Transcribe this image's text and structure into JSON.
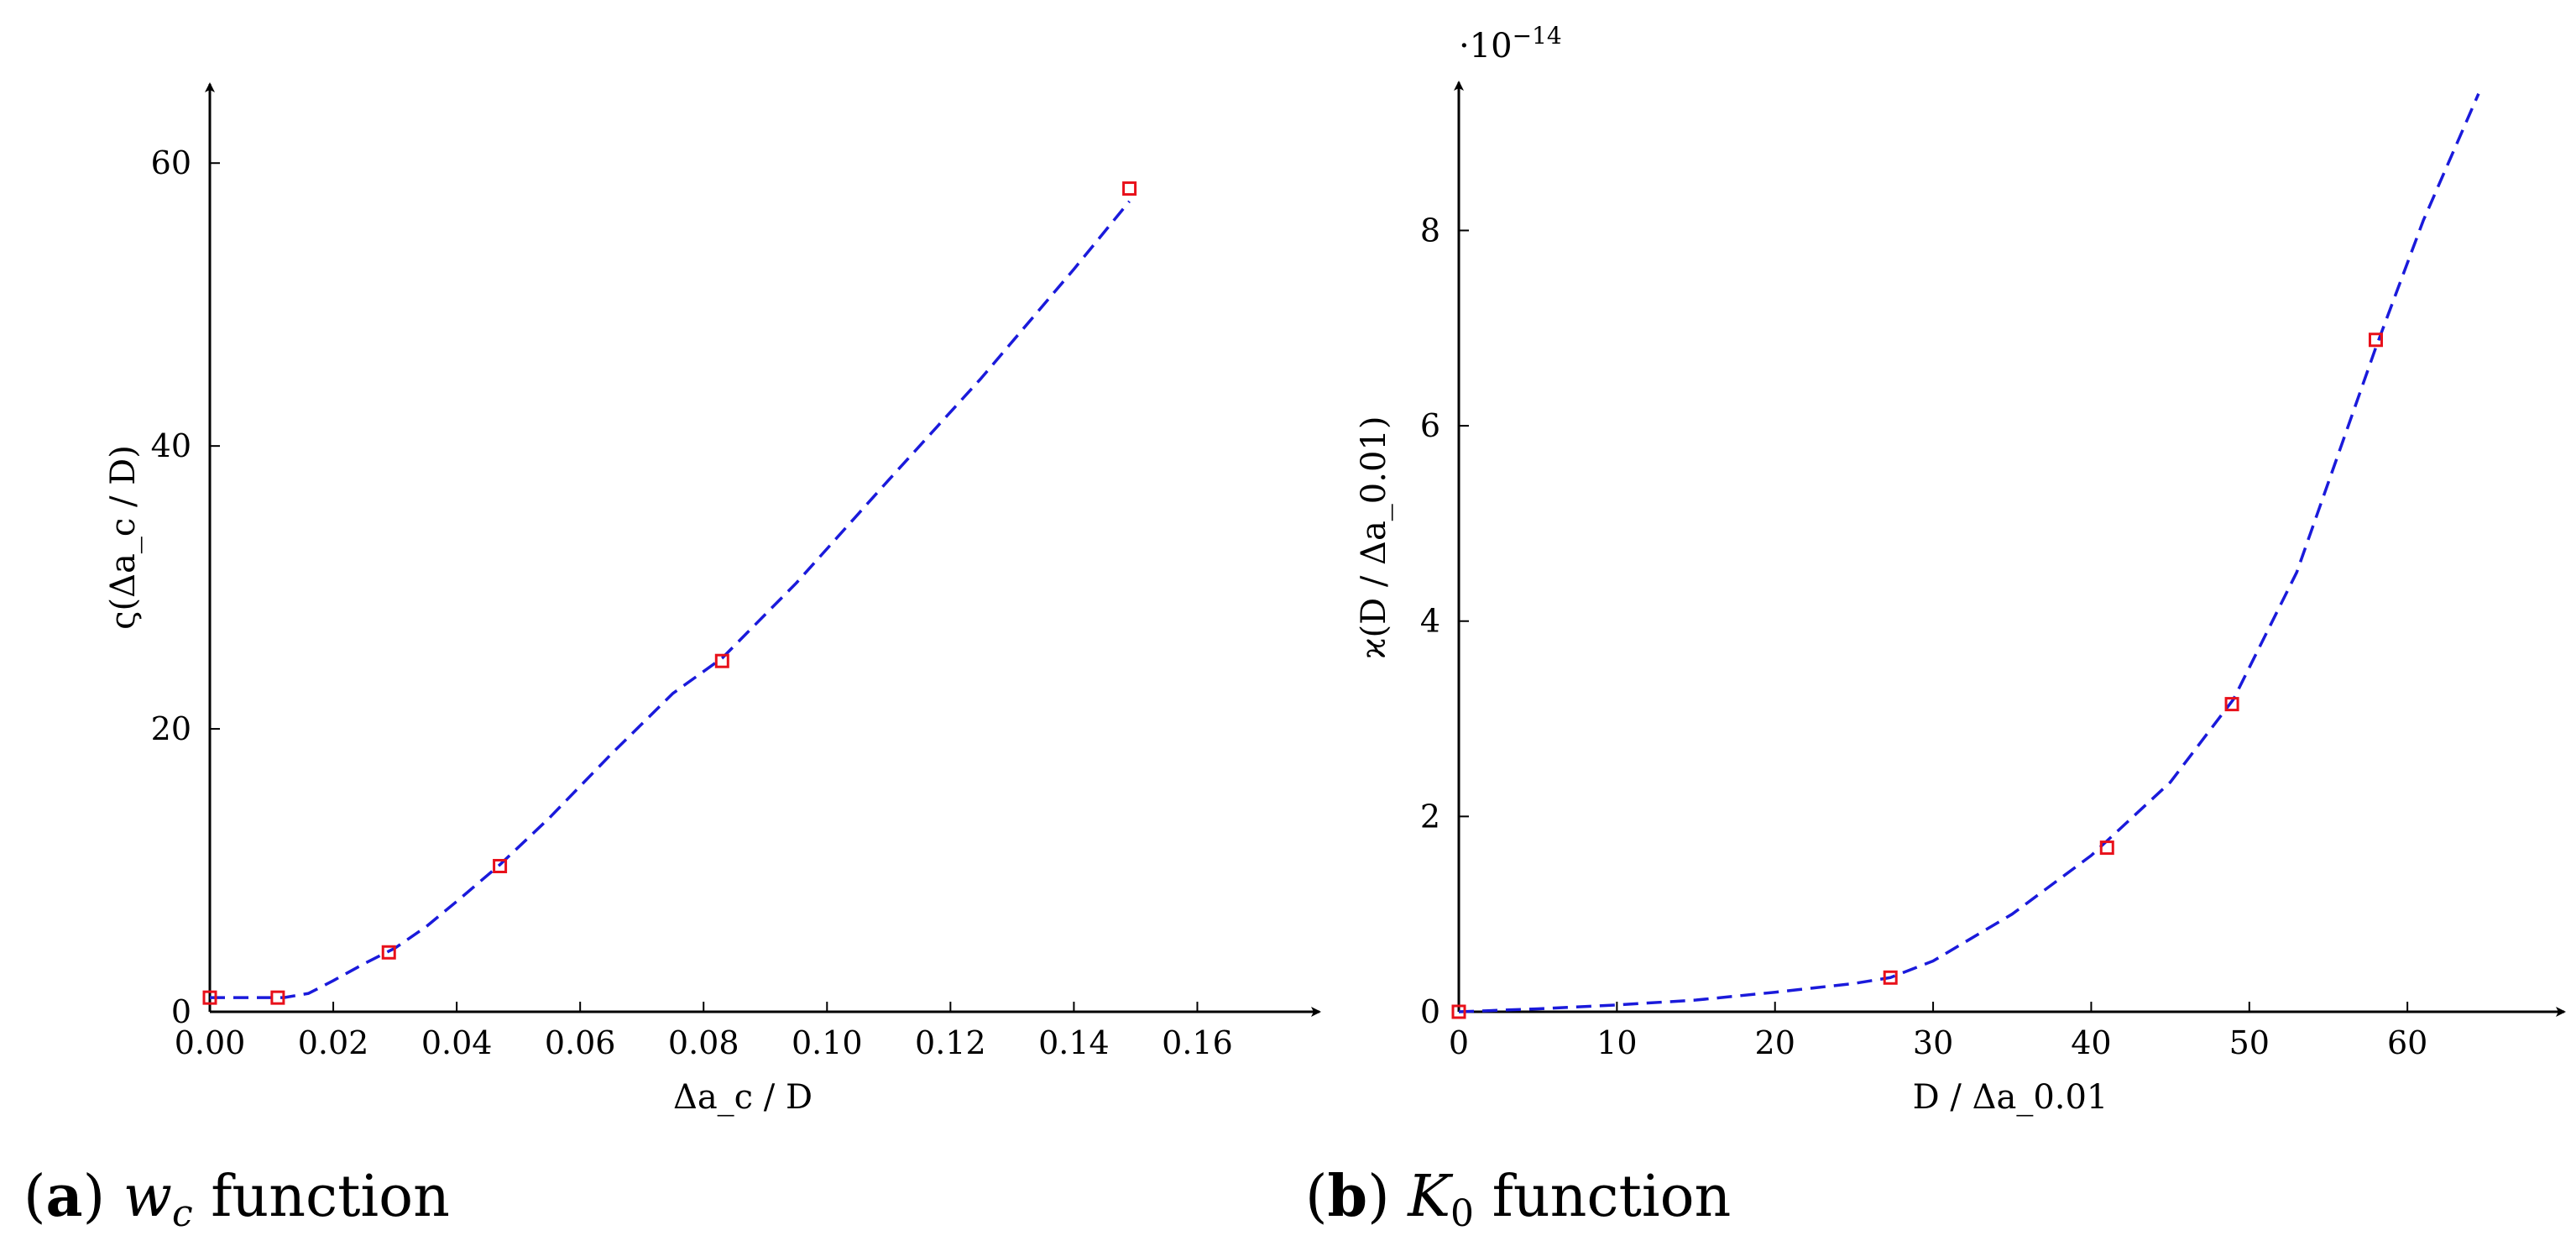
{
  "chart_data": [
    {
      "type": "line",
      "panel": "a",
      "caption_tag": "a",
      "caption_text": "w_c function",
      "caption_symbol": "w",
      "caption_sub": "c",
      "caption_rest": " function",
      "xlabel": "Δa_c / D",
      "ylabel": "ς(Δa_c / D)",
      "xlim": [
        0,
        0.17
      ],
      "ylim": [
        0,
        65
      ],
      "xticks": [
        0,
        0.02,
        0.04,
        0.06,
        0.08,
        0.1,
        0.12,
        0.14,
        0.16
      ],
      "xtick_labels": [
        "0.00",
        "0.02",
        "0.04",
        "0.06",
        "0.08",
        "0.10",
        "0.12",
        "0.14",
        "0.16"
      ],
      "yticks": [
        0,
        20,
        40,
        60
      ],
      "ytick_labels": [
        "0",
        "20",
        "40",
        "60"
      ],
      "series": [
        {
          "name": "fit",
          "style": "dashed",
          "color": "#1a1adb",
          "x": [
            0,
            0.012,
            0.016,
            0.02,
            0.025,
            0.03,
            0.035,
            0.04,
            0.047,
            0.055,
            0.065,
            0.075,
            0.083,
            0.095,
            0.11,
            0.125,
            0.14,
            0.149
          ],
          "y": [
            1.0,
            1.0,
            1.3,
            2.2,
            3.4,
            4.5,
            6.0,
            7.8,
            10.4,
            13.7,
            18.2,
            22.5,
            25.0,
            30.3,
            37.6,
            44.8,
            52.5,
            57.3
          ]
        },
        {
          "name": "points",
          "style": "marker",
          "color": "#e8101a",
          "x": [
            0.0,
            0.011,
            0.029,
            0.047,
            0.083,
            0.149
          ],
          "y": [
            1.0,
            1.0,
            4.2,
            10.3,
            24.8,
            58.2
          ]
        }
      ]
    },
    {
      "type": "line",
      "panel": "b",
      "caption_tag": "b",
      "caption_text": "K_0 function",
      "caption_symbol": "K",
      "caption_sub": "0",
      "caption_rest": " function",
      "xlabel": "D / Δa_0.01",
      "ylabel": "ϰ(D / Δa_0.01)",
      "multiplier": "·10",
      "multiplier_exp": "−14",
      "xlim": [
        0,
        67
      ],
      "ylim": [
        0,
        9.5
      ],
      "xticks": [
        0,
        10,
        20,
        30,
        40,
        50,
        60
      ],
      "xtick_labels": [
        "0",
        "10",
        "20",
        "30",
        "40",
        "50",
        "60"
      ],
      "yticks": [
        0,
        2,
        4,
        6,
        8
      ],
      "ytick_labels": [
        "0",
        "2",
        "4",
        "6",
        "8"
      ],
      "series": [
        {
          "name": "fit",
          "style": "dashed",
          "color": "#1a1adb",
          "x": [
            0,
            5,
            10,
            15,
            20,
            25,
            27.3,
            30,
            35,
            40,
            45,
            49,
            53,
            58,
            61,
            64.5
          ],
          "y": [
            0,
            0.03,
            0.07,
            0.12,
            0.2,
            0.29,
            0.35,
            0.52,
            1.0,
            1.6,
            2.35,
            3.2,
            4.5,
            6.8,
            8.1,
            9.4
          ]
        },
        {
          "name": "points",
          "style": "marker",
          "color": "#e8101a",
          "x": [
            0,
            27.3,
            41.0,
            48.9,
            58.0
          ],
          "y": [
            0,
            0.35,
            1.68,
            3.15,
            6.88
          ]
        }
      ]
    }
  ]
}
